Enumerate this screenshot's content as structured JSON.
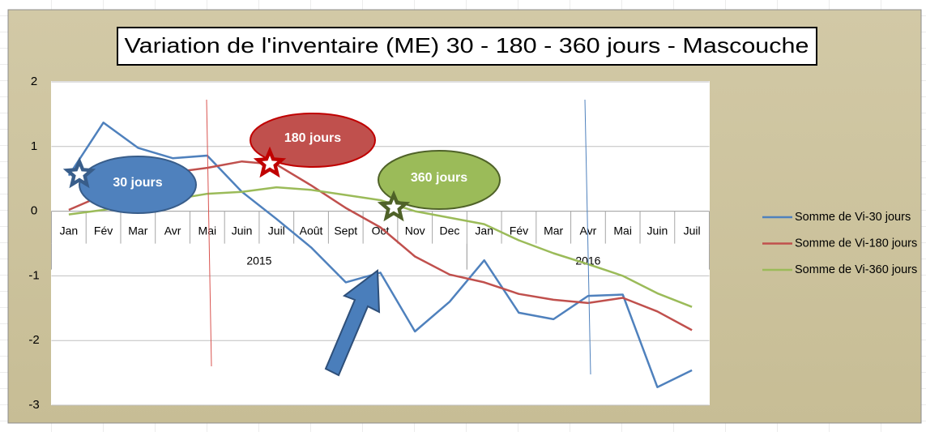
{
  "chart_data": {
    "type": "line",
    "title": "Variation de l'inventaire (ME) 30 - 180 - 360 jours - Mascouche",
    "categories": [
      "Jan",
      "Fév",
      "Mar",
      "Avr",
      "Mai",
      "Juin",
      "Juil",
      "Août",
      "Sept",
      "Oct",
      "Nov",
      "Dec",
      "Jan",
      "Fév",
      "Mar",
      "Avr",
      "Mai",
      "Juin",
      "Juil"
    ],
    "category_groups": [
      {
        "label": "2015",
        "span": 12
      },
      {
        "label": "2016",
        "span": 7
      }
    ],
    "series": [
      {
        "name": "Somme de Vi-30 jours",
        "color": "#4f81bd",
        "values": [
          0.55,
          1.37,
          0.98,
          0.82,
          0.86,
          0.3,
          -0.12,
          -0.56,
          -1.1,
          -0.95,
          -1.86,
          -1.4,
          -0.76,
          -1.57,
          -1.67,
          -1.31,
          -1.29,
          -2.72,
          -2.46
        ]
      },
      {
        "name": "Somme de Vi-180 jours",
        "color": "#c0504d",
        "values": [
          0.02,
          0.25,
          0.45,
          0.6,
          0.67,
          0.77,
          0.72,
          0.4,
          0.05,
          -0.25,
          -0.7,
          -0.98,
          -1.1,
          -1.28,
          -1.37,
          -1.42,
          -1.34,
          -1.55,
          -1.84
        ]
      },
      {
        "name": "Somme de Vi-360 jours",
        "color": "#9bbb59",
        "values": [
          -0.05,
          0.02,
          0.1,
          0.18,
          0.27,
          0.3,
          0.37,
          0.33,
          0.25,
          0.17,
          0.0,
          -0.1,
          -0.2,
          -0.45,
          -0.65,
          -0.82,
          -1.0,
          -1.27,
          -1.48
        ]
      }
    ],
    "ylim": [
      -3,
      2
    ],
    "yticks": [
      -3,
      -2,
      -1,
      0,
      1,
      2
    ],
    "grid": true,
    "legend": "right",
    "annotations": [
      "30 jours",
      "180 jours",
      "360 jours"
    ]
  }
}
